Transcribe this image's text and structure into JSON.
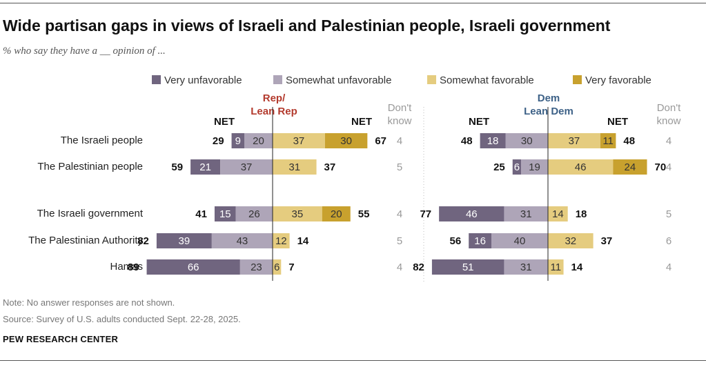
{
  "title": "Wide partisan gaps in views of Israeli and Palestinian people, Israeli government",
  "subtitle": "% who say they have a __ opinion of ...",
  "legend": {
    "very_unfavorable": "Very unfavorable",
    "somewhat_unfavorable": "Somewhat unfavorable",
    "somewhat_favorable": "Somewhat favorable",
    "very_favorable": "Very favorable"
  },
  "colors": {
    "very_unfavorable": "#70657f",
    "somewhat_unfavorable": "#aea5b8",
    "somewhat_favorable": "#e5cc7f",
    "very_favorable": "#c8a12e",
    "rep_label": "#b33a2d",
    "dem_label": "#3d6187",
    "dont_know": "#999999"
  },
  "note": "Note: No answer responses are not shown.",
  "source": "Source: Survey of U.S. adults conducted Sept. 22-28, 2025.",
  "brand": "PEW RESEARCH CENTER",
  "chart_data": {
    "type": "diverging-bar",
    "categories": [
      "The Israeli people",
      "The Palestinian people",
      "The Israeli government",
      "The Palestinian Authority",
      "Hamas"
    ],
    "column_labels": {
      "net": "NET",
      "dont_know": [
        "Don't",
        "know"
      ]
    },
    "panels": [
      {
        "name": "Rep/Lean Rep",
        "header": [
          "Rep/",
          "Lean Rep"
        ],
        "net_unfavorable": [
          29,
          59,
          41,
          82,
          89
        ],
        "very_unfavorable": [
          9,
          21,
          15,
          39,
          66
        ],
        "somewhat_unfavorable": [
          20,
          37,
          26,
          43,
          23
        ],
        "somewhat_favorable": [
          37,
          31,
          35,
          12,
          6
        ],
        "very_favorable": [
          30,
          null,
          20,
          null,
          null
        ],
        "net_favorable": [
          67,
          37,
          55,
          14,
          7
        ],
        "dont_know": [
          4,
          5,
          4,
          5,
          4
        ]
      },
      {
        "name": "Dem/Lean Dem",
        "header": [
          "Dem",
          "Lean Dem"
        ],
        "net_unfavorable": [
          48,
          25,
          77,
          56,
          82
        ],
        "very_unfavorable": [
          18,
          6,
          46,
          16,
          51
        ],
        "somewhat_unfavorable": [
          30,
          19,
          31,
          40,
          31
        ],
        "somewhat_favorable": [
          37,
          46,
          14,
          32,
          11
        ],
        "very_favorable": [
          11,
          24,
          null,
          null,
          null
        ],
        "net_favorable": [
          48,
          70,
          18,
          37,
          14
        ],
        "dont_know": [
          4,
          4,
          5,
          6,
          4
        ]
      }
    ]
  }
}
